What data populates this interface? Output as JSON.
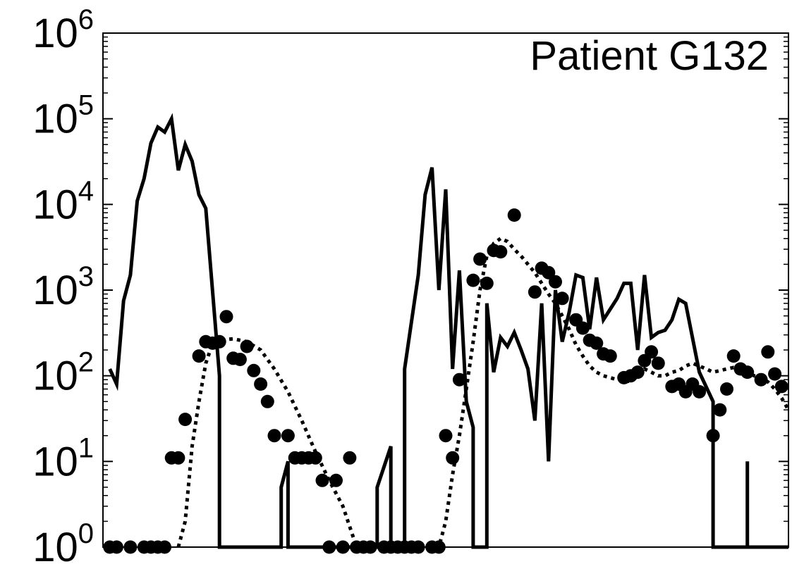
{
  "chart_data": {
    "type": "line",
    "title": "",
    "annotation": "Patient G132",
    "xlabel": "",
    "ylabel": "",
    "x_tick_labels": [],
    "y_scale": "log",
    "y_tick_labels": [
      {
        "base": "10",
        "exp": "0",
        "value": 1
      },
      {
        "base": "10",
        "exp": "1",
        "value": 10
      },
      {
        "base": "10",
        "exp": "2",
        "value": 100
      },
      {
        "base": "10",
        "exp": "3",
        "value": 1000
      },
      {
        "base": "10",
        "exp": "4",
        "value": 10000
      },
      {
        "base": "10",
        "exp": "5",
        "value": 100000
      },
      {
        "base": "10",
        "exp": "6",
        "value": 1000000
      }
    ],
    "xlim": [
      0,
      100
    ],
    "ylim": [
      1,
      1000000
    ],
    "grid": false,
    "legend": "none",
    "series": [
      {
        "style": "solid",
        "color": "#000000",
        "points": [
          [
            1,
            120
          ],
          [
            2,
            80
          ],
          [
            3,
            750
          ],
          [
            4,
            1500
          ],
          [
            5,
            11000
          ],
          [
            6,
            20000
          ],
          [
            7,
            52000
          ],
          [
            8,
            80000
          ],
          [
            9,
            70000
          ],
          [
            10,
            100000
          ],
          [
            11,
            25000
          ],
          [
            12,
            50000
          ],
          [
            13,
            32000
          ],
          [
            14,
            13000
          ],
          [
            15,
            9000
          ],
          [
            17,
            100
          ],
          [
            17,
            1
          ],
          [
            26,
            1
          ],
          [
            26,
            5
          ],
          [
            27,
            10
          ],
          [
            27,
            1
          ],
          [
            40,
            1
          ],
          [
            40,
            5
          ],
          [
            42,
            15
          ],
          [
            42,
            1
          ],
          [
            44,
            1
          ],
          [
            44,
            120
          ],
          [
            46,
            1500
          ],
          [
            47,
            13000
          ],
          [
            48,
            27000
          ],
          [
            49,
            1000
          ],
          [
            50,
            15000
          ],
          [
            51,
            120
          ],
          [
            52,
            1700
          ],
          [
            53,
            50
          ],
          [
            54,
            25
          ],
          [
            54,
            1
          ],
          [
            56,
            1
          ],
          [
            56,
            700
          ],
          [
            57,
            110
          ],
          [
            58,
            280
          ],
          [
            59,
            220
          ],
          [
            60,
            320
          ],
          [
            61,
            200
          ],
          [
            62,
            120
          ],
          [
            63,
            30
          ],
          [
            64,
            700
          ],
          [
            65,
            10
          ],
          [
            66,
            1000
          ],
          [
            67,
            250
          ],
          [
            68,
            550
          ],
          [
            69,
            1500
          ],
          [
            70,
            1400
          ],
          [
            71,
            350
          ],
          [
            72,
            1400
          ],
          [
            73,
            450
          ],
          [
            74,
            600
          ],
          [
            75,
            800
          ],
          [
            76,
            1200
          ],
          [
            77,
            1200
          ],
          [
            78,
            200
          ],
          [
            79,
            1500
          ],
          [
            80,
            280
          ],
          [
            81,
            320
          ],
          [
            82,
            340
          ],
          [
            83,
            450
          ],
          [
            84,
            780
          ],
          [
            85,
            700
          ],
          [
            87,
            110
          ],
          [
            89,
            50
          ],
          [
            89,
            1
          ],
          [
            94,
            1
          ],
          [
            94,
            10
          ],
          [
            94,
            1
          ],
          [
            100,
            1
          ]
        ]
      },
      {
        "style": "dotted",
        "color": "#000000",
        "points": [
          [
            11,
            1
          ],
          [
            12,
            2
          ],
          [
            13,
            15
          ],
          [
            14,
            50
          ],
          [
            15,
            140
          ],
          [
            16,
            240
          ],
          [
            17,
            260
          ],
          [
            19,
            270
          ],
          [
            21,
            250
          ],
          [
            23,
            200
          ],
          [
            25,
            120
          ],
          [
            27,
            65
          ],
          [
            29,
            30
          ],
          [
            31,
            13
          ],
          [
            33,
            6
          ],
          [
            35,
            3
          ],
          [
            37,
            1
          ],
          [
            49,
            1
          ],
          [
            50,
            2
          ],
          [
            51,
            7
          ],
          [
            52,
            20
          ],
          [
            53,
            70
          ],
          [
            54,
            250
          ],
          [
            55,
            1000
          ],
          [
            56,
            2500
          ],
          [
            57,
            3500
          ],
          [
            58,
            4000
          ],
          [
            59,
            3700
          ],
          [
            60,
            3000
          ],
          [
            61,
            2500
          ],
          [
            62,
            2000
          ],
          [
            63,
            1600
          ],
          [
            64,
            1200
          ],
          [
            65,
            900
          ],
          [
            66,
            700
          ],
          [
            67,
            500
          ],
          [
            68,
            350
          ],
          [
            69,
            230
          ],
          [
            70,
            170
          ],
          [
            71,
            130
          ],
          [
            72,
            110
          ],
          [
            73,
            100
          ],
          [
            74,
            95
          ],
          [
            75,
            90
          ],
          [
            76,
            90
          ],
          [
            77,
            85
          ],
          [
            78,
            100
          ],
          [
            79,
            120
          ],
          [
            80,
            110
          ],
          [
            81,
            100
          ],
          [
            82,
            100
          ],
          [
            83,
            110
          ],
          [
            84,
            115
          ],
          [
            85,
            130
          ],
          [
            86,
            140
          ],
          [
            87,
            130
          ],
          [
            88,
            120
          ],
          [
            89,
            110
          ],
          [
            90,
            115
          ],
          [
            91,
            120
          ],
          [
            92,
            125
          ],
          [
            93,
            120
          ],
          [
            94,
            110
          ],
          [
            95,
            100
          ],
          [
            96,
            95
          ],
          [
            97,
            85
          ],
          [
            98,
            70
          ],
          [
            99,
            55
          ],
          [
            100,
            40
          ]
        ]
      },
      {
        "style": "markers",
        "color": "#000000",
        "points": [
          [
            1,
            1
          ],
          [
            2,
            1
          ],
          [
            4,
            1
          ],
          [
            6,
            1
          ],
          [
            7,
            1
          ],
          [
            8,
            1
          ],
          [
            9,
            1
          ],
          [
            10,
            11
          ],
          [
            11,
            11
          ],
          [
            12,
            31
          ],
          [
            14,
            170
          ],
          [
            15,
            250
          ],
          [
            16,
            240
          ],
          [
            17,
            250
          ],
          [
            18,
            490
          ],
          [
            19,
            160
          ],
          [
            20,
            155
          ],
          [
            21,
            220
          ],
          [
            22,
            115
          ],
          [
            23,
            80
          ],
          [
            24,
            50
          ],
          [
            25,
            20
          ],
          [
            27,
            20
          ],
          [
            28,
            11
          ],
          [
            29,
            11
          ],
          [
            30,
            11
          ],
          [
            31,
            11
          ],
          [
            32,
            6
          ],
          [
            34,
            6
          ],
          [
            36,
            11
          ],
          [
            33,
            1
          ],
          [
            35,
            1
          ],
          [
            37,
            1
          ],
          [
            38,
            1
          ],
          [
            39,
            1
          ],
          [
            41,
            1
          ],
          [
            42,
            1
          ],
          [
            43,
            1
          ],
          [
            44,
            1
          ],
          [
            45,
            1
          ],
          [
            46,
            1
          ],
          [
            48,
            1
          ],
          [
            49,
            1
          ],
          [
            50,
            20
          ],
          [
            51,
            11
          ],
          [
            52,
            90
          ],
          [
            54,
            1300
          ],
          [
            55,
            2300
          ],
          [
            56,
            1200
          ],
          [
            57,
            2900
          ],
          [
            58,
            2800
          ],
          [
            60,
            7500
          ],
          [
            63,
            950
          ],
          [
            64,
            1800
          ],
          [
            65,
            1600
          ],
          [
            66,
            1250
          ],
          [
            67,
            800
          ],
          [
            69,
            450
          ],
          [
            70,
            360
          ],
          [
            71,
            260
          ],
          [
            72,
            240
          ],
          [
            73,
            180
          ],
          [
            74,
            170
          ],
          [
            76,
            95
          ],
          [
            77,
            100
          ],
          [
            78,
            110
          ],
          [
            79,
            150
          ],
          [
            80,
            190
          ],
          [
            81,
            140
          ],
          [
            83,
            75
          ],
          [
            84,
            80
          ],
          [
            85,
            65
          ],
          [
            86,
            80
          ],
          [
            87,
            65
          ],
          [
            89,
            20
          ],
          [
            90,
            40
          ],
          [
            91,
            70
          ],
          [
            92,
            170
          ],
          [
            93,
            120
          ],
          [
            94,
            110
          ],
          [
            96,
            90
          ],
          [
            97,
            190
          ],
          [
            98,
            105
          ],
          [
            99,
            75
          ]
        ]
      }
    ]
  }
}
